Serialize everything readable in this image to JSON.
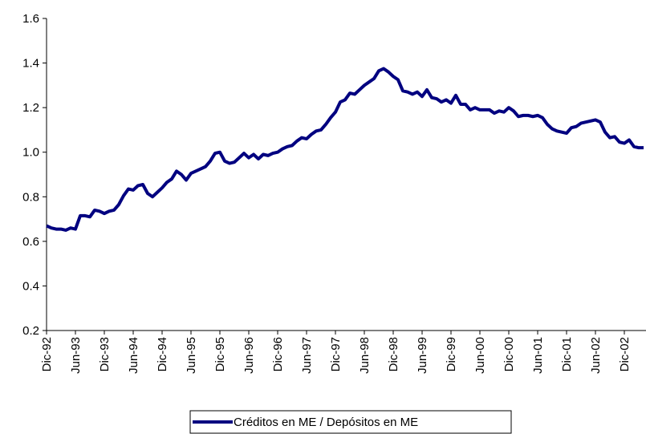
{
  "chart_data": {
    "type": "line",
    "categories": [
      "Dic-92",
      null,
      null,
      null,
      null,
      null,
      "Jun-93",
      null,
      null,
      null,
      null,
      null,
      "Dic-93",
      null,
      null,
      null,
      null,
      null,
      "Jun-94",
      null,
      null,
      null,
      null,
      null,
      "Dic-94",
      null,
      null,
      null,
      null,
      null,
      "Jun-95",
      null,
      null,
      null,
      null,
      null,
      "Dic-95",
      null,
      null,
      null,
      null,
      null,
      "Jun-96",
      null,
      null,
      null,
      null,
      null,
      "Dic-96",
      null,
      null,
      null,
      null,
      null,
      "Jun-97",
      null,
      null,
      null,
      null,
      null,
      "Dic-97",
      null,
      null,
      null,
      null,
      null,
      "Jun-98",
      null,
      null,
      null,
      null,
      null,
      "Dic-98",
      null,
      null,
      null,
      null,
      null,
      "Jun-99",
      null,
      null,
      null,
      null,
      null,
      "Dic-99",
      null,
      null,
      null,
      null,
      null,
      "Jun-00",
      null,
      null,
      null,
      null,
      null,
      "Dic-00",
      null,
      null,
      null,
      null,
      null,
      "Jun-01",
      null,
      null,
      null,
      null,
      null,
      "Dic-01",
      null,
      null,
      null,
      null,
      null,
      "Jun-02",
      null,
      null,
      null,
      null,
      null,
      "Dic-02",
      null,
      null,
      null,
      null
    ],
    "series": [
      {
        "name": "Créditos en ME / Depósitos en ME",
        "color": "#000080",
        "values": [
          0.67,
          0.66,
          0.655,
          0.655,
          0.65,
          0.66,
          0.655,
          0.715,
          0.715,
          0.71,
          0.74,
          0.735,
          0.725,
          0.735,
          0.74,
          0.765,
          0.805,
          0.835,
          0.83,
          0.85,
          0.855,
          0.815,
          0.8,
          0.82,
          0.84,
          0.865,
          0.88,
          0.915,
          0.9,
          0.875,
          0.905,
          0.915,
          0.925,
          0.935,
          0.96,
          0.995,
          1.0,
          0.96,
          0.95,
          0.955,
          0.975,
          0.995,
          0.975,
          0.99,
          0.97,
          0.99,
          0.985,
          0.995,
          1.0,
          1.015,
          1.025,
          1.03,
          1.05,
          1.065,
          1.06,
          1.08,
          1.095,
          1.1,
          1.125,
          1.155,
          1.18,
          1.225,
          1.235,
          1.265,
          1.26,
          1.28,
          1.3,
          1.315,
          1.33,
          1.365,
          1.375,
          1.36,
          1.34,
          1.325,
          1.275,
          1.27,
          1.26,
          1.27,
          1.25,
          1.28,
          1.245,
          1.24,
          1.225,
          1.235,
          1.22,
          1.255,
          1.215,
          1.215,
          1.19,
          1.2,
          1.19,
          1.19,
          1.19,
          1.175,
          1.185,
          1.18,
          1.2,
          1.185,
          1.16,
          1.165,
          1.165,
          1.16,
          1.165,
          1.155,
          1.125,
          1.105,
          1.095,
          1.09,
          1.085,
          1.11,
          1.115,
          1.13,
          1.135,
          1.14,
          1.145,
          1.135,
          1.09,
          1.065,
          1.07,
          1.045,
          1.04,
          1.055,
          1.025,
          1.02,
          1.02
        ]
      }
    ],
    "ylim": [
      0.2,
      1.6
    ],
    "yticks": [
      0.2,
      0.4,
      0.6,
      0.8,
      {
        "value": 1,
        "label": "1.0"
      },
      1.2,
      1.4,
      1.6
    ],
    "grid": false
  }
}
